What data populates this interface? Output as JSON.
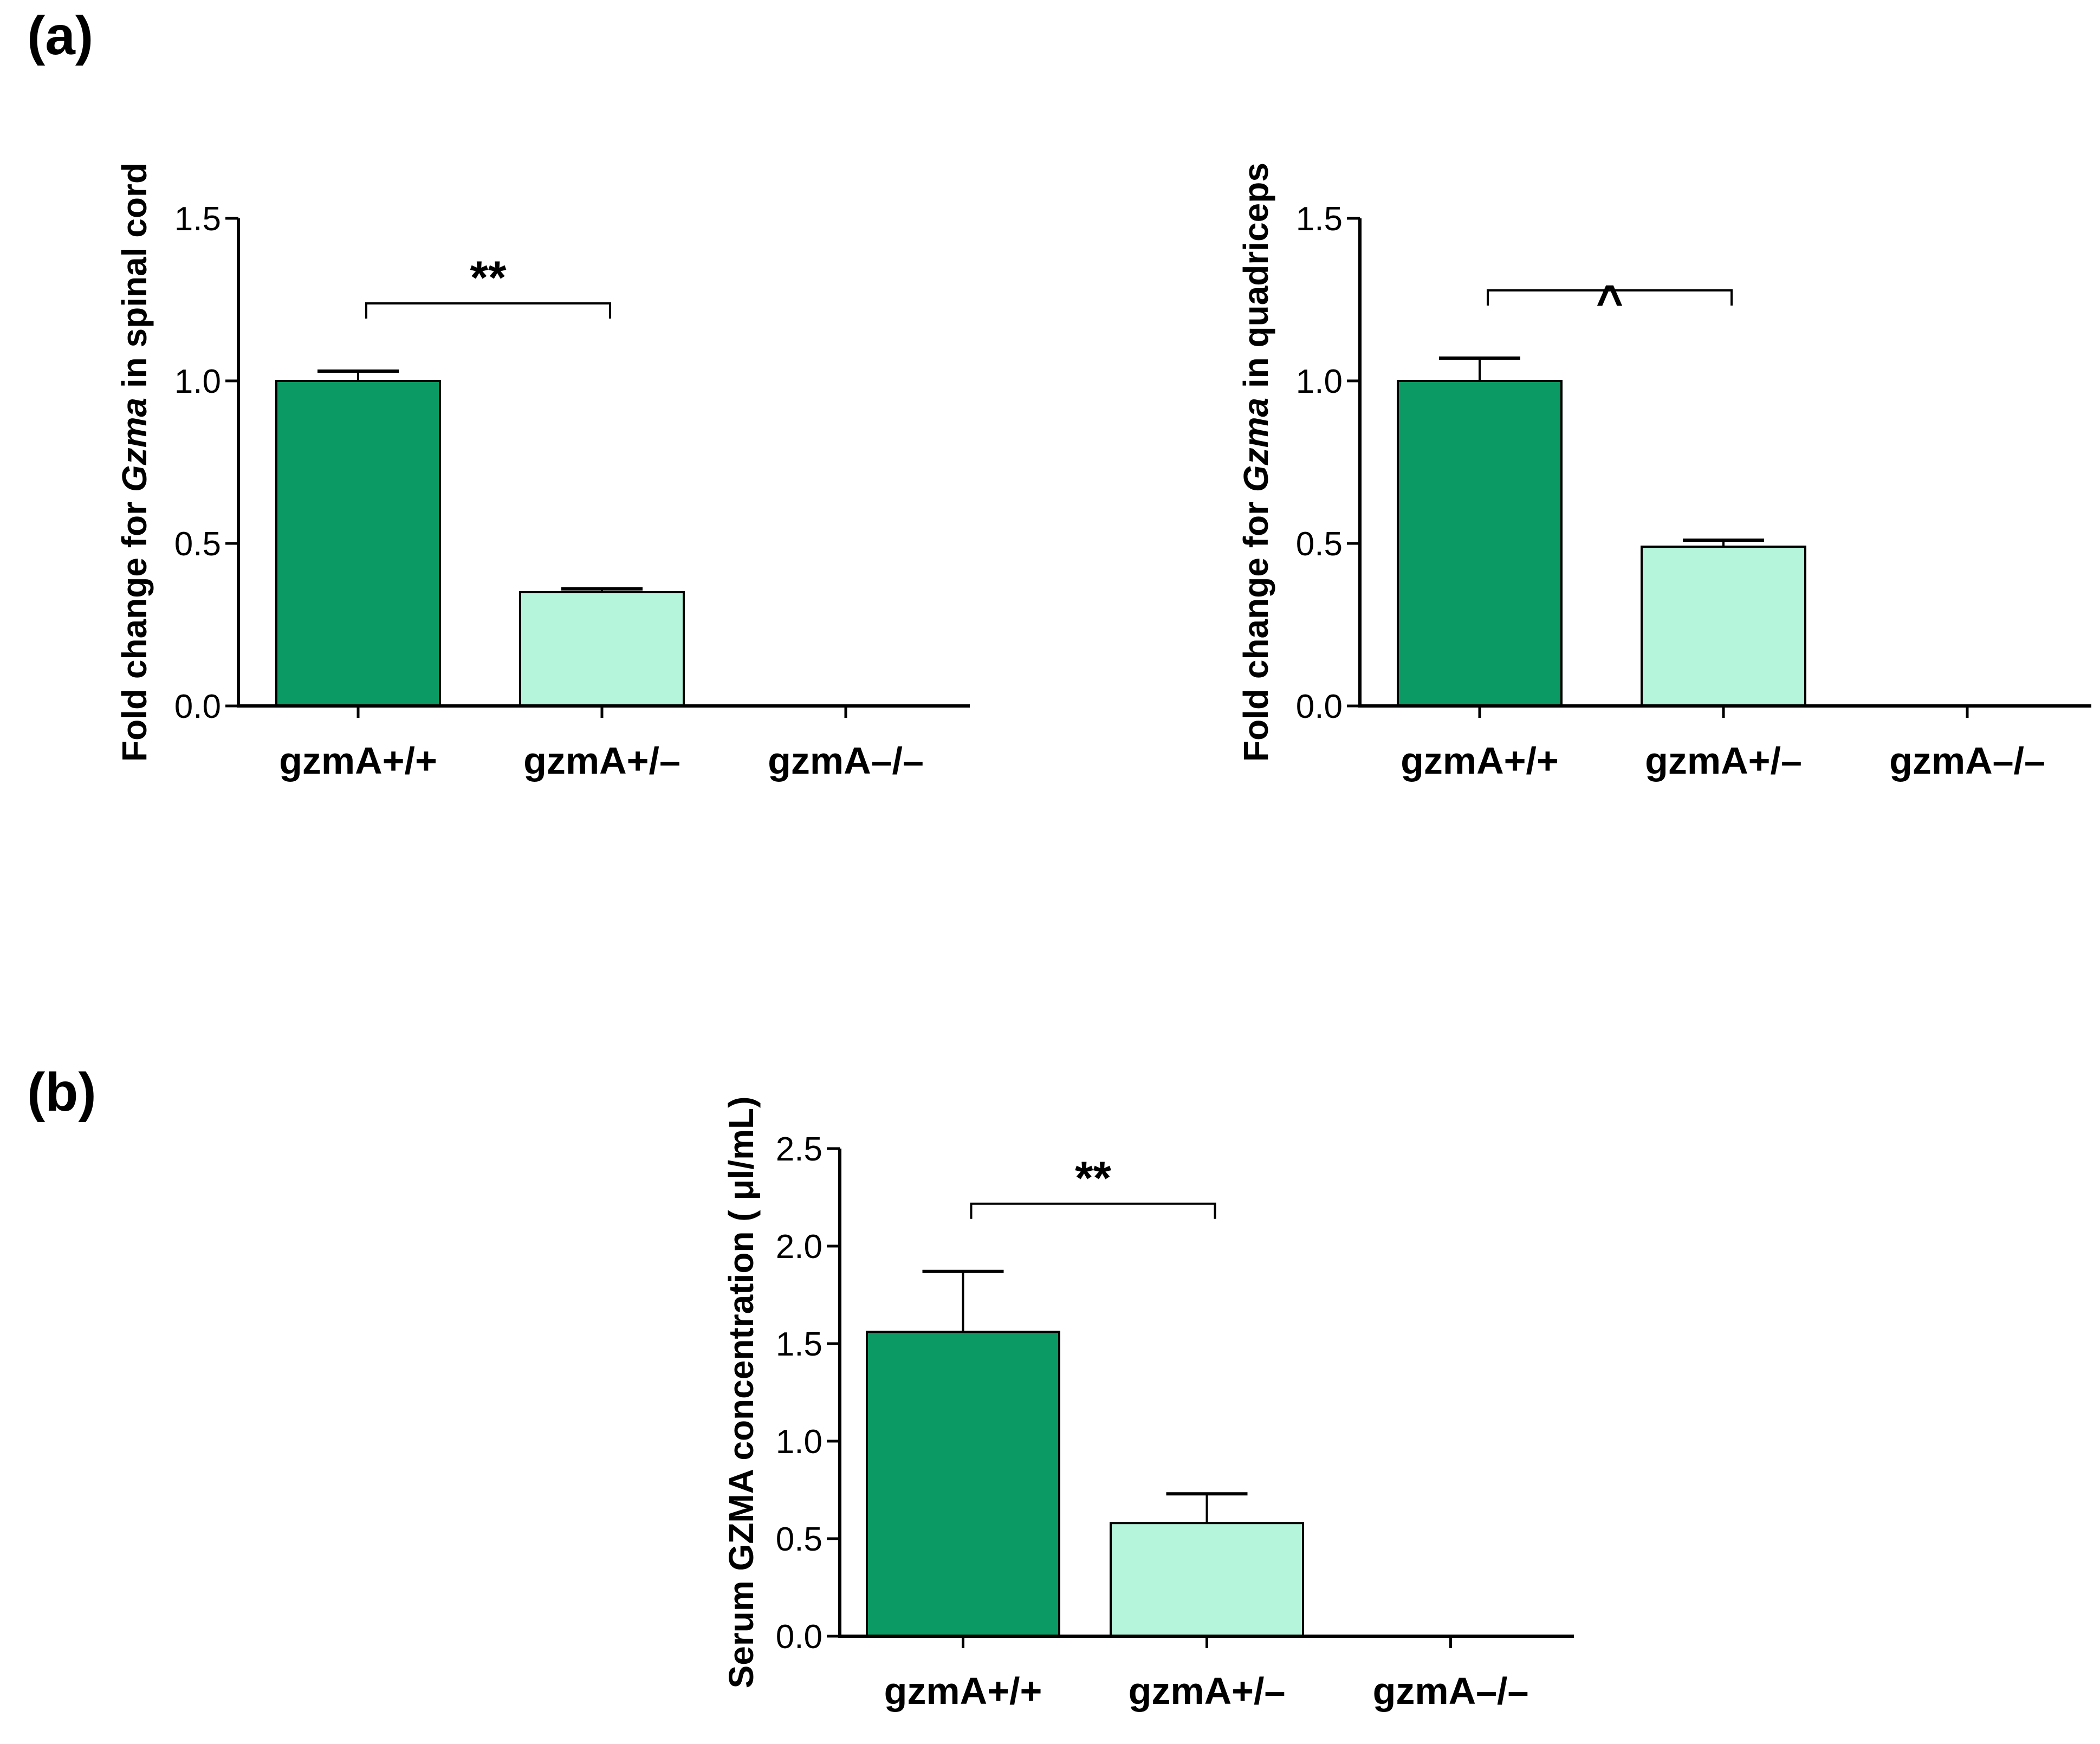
{
  "panels": {
    "a": "(a)",
    "b": "(b)"
  },
  "colors": {
    "dark_green": "#0b9a63",
    "light_green": "#b5f5dc",
    "axis": "#000000"
  },
  "chart_data": [
    {
      "type": "bar",
      "panel": "(a)",
      "categories": [
        "gzmA+/+",
        "gzmA+/–",
        "gzmA–/–"
      ],
      "values": [
        1.0,
        0.35,
        0.0
      ],
      "error": [
        0.03,
        0.01,
        0.0
      ],
      "ylabel_parts": [
        "Fold change for ",
        "Gzma",
        " in spinal cord"
      ],
      "ylim": [
        0,
        1.5
      ],
      "yticks": [
        "0.0",
        "0.5",
        "1.0",
        "1.5"
      ],
      "significance": {
        "from": 0,
        "to": 1,
        "label": "**"
      }
    },
    {
      "type": "bar",
      "panel": "(a)",
      "categories": [
        "gzmA+/+",
        "gzmA+/–",
        "gzmA–/–"
      ],
      "values": [
        1.0,
        0.49,
        0.0
      ],
      "error": [
        0.07,
        0.02,
        0.0
      ],
      "ylabel_parts": [
        "Fold change for ",
        "Gzma",
        " in quadriceps"
      ],
      "ylim": [
        0,
        1.5
      ],
      "yticks": [
        "0.0",
        "0.5",
        "1.0",
        "1.5"
      ],
      "significance": {
        "from": 0,
        "to": 1,
        "label": "^"
      }
    },
    {
      "type": "bar",
      "panel": "(b)",
      "categories": [
        "gzmA+/+",
        "gzmA+/–",
        "gzmA–/–"
      ],
      "values": [
        1.56,
        0.58,
        0.0
      ],
      "error": [
        0.31,
        0.15,
        0.0
      ],
      "ylabel_parts": [
        "Serum GZMA concentration ( μl/mL)"
      ],
      "ylim": [
        0,
        2.5
      ],
      "yticks": [
        "0.0",
        "0.5",
        "1.0",
        "1.5",
        "2.0",
        "2.5"
      ],
      "significance": {
        "from": 0,
        "to": 1,
        "label": "**"
      }
    }
  ]
}
